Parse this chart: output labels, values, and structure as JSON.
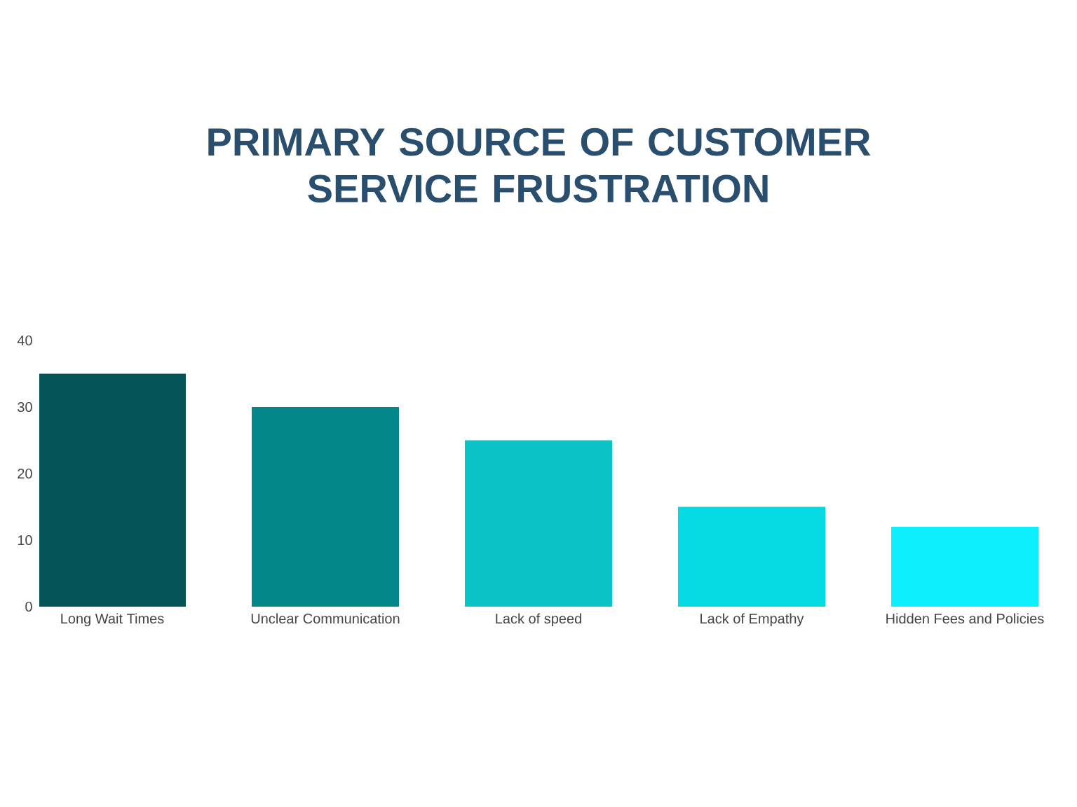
{
  "chart_data": {
    "type": "bar",
    "title": "PRIMARY SOURCE OF CUSTOMER SERVICE FRUSTRATION",
    "categories": [
      "Long Wait Times",
      "Unclear Communication",
      "Lack of speed",
      "Lack of Empathy",
      "Hidden Fees and Policies"
    ],
    "values": [
      35,
      30,
      25,
      15,
      12
    ],
    "colors": [
      "#045457",
      "#03878a",
      "#0cc4c8",
      "#05d9e2",
      "#0ff0ff"
    ],
    "ylim": [
      0,
      40
    ],
    "yticks": [
      0,
      10,
      20,
      30,
      40
    ],
    "grid": false
  }
}
